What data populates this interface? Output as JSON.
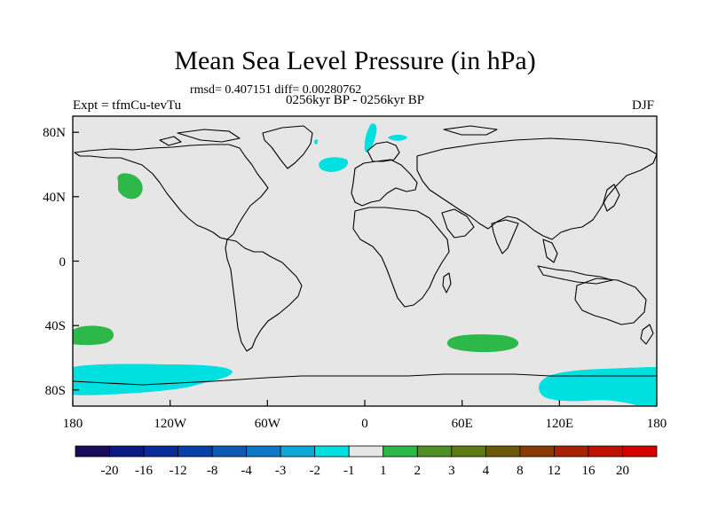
{
  "title": "Mean Sea Level Pressure (in hPa)",
  "stats": "rmsd= 0.407151  diff= 0.00280762",
  "period": "0256kyr BP - 0256kyr BP",
  "experiment": "Expt = tfmCu-tevTu",
  "season": "DJF",
  "map": {
    "lon_range": [
      -180,
      180
    ],
    "lat_range": [
      -90,
      90
    ],
    "x_ticks": [
      "180",
      "120W",
      "60W",
      "0",
      "60E",
      "120E",
      "180"
    ],
    "y_ticks": [
      "80N",
      "40N",
      "0",
      "40S",
      "80S"
    ],
    "background_color": "#e6e6e6",
    "anomalies": [
      {
        "region": "North Pacific",
        "lon": -147,
        "lat": 47,
        "class": "1 to 2",
        "color": "#2db84a"
      },
      {
        "region": "South Pacific",
        "lon": -163,
        "lat": -45,
        "class": "1 to 2",
        "color": "#2db84a"
      },
      {
        "region": "South Indian Ocean",
        "lon": 68,
        "lat": -50,
        "class": "1 to 2",
        "color": "#2db84a"
      },
      {
        "region": "North Atlantic / Iceland",
        "lon": -18,
        "lat": 62,
        "class": "-2 to -1",
        "color": "#00e0e0"
      },
      {
        "region": "Svalbard",
        "lon": 5,
        "lat": 80,
        "class": "-2 to -1",
        "color": "#00e0e0"
      },
      {
        "region": "Antarctic Ross / Amundsen Sea",
        "lon": -150,
        "lat": -78,
        "class": "-2 to -1",
        "color": "#00e0e0"
      },
      {
        "region": "East Antarctic coast",
        "lon": 150,
        "lat": -78,
        "class": "-2 to -1",
        "color": "#00e0e0"
      }
    ]
  },
  "colorbar": {
    "labels": [
      "-20",
      "-16",
      "-12",
      "-8",
      "-4",
      "-3",
      "-2",
      "-1",
      "1",
      "2",
      "3",
      "4",
      "8",
      "12",
      "16",
      "20"
    ],
    "colors": [
      "#1a0a5a",
      "#0a1a82",
      "#0a2b9a",
      "#0640a8",
      "#0b5ab4",
      "#0a78c4",
      "#0aa8d8",
      "#00e0e0",
      "#e6e6e6",
      "#2db84a",
      "#4f8f22",
      "#5e7a12",
      "#6a5a08",
      "#8a3a05",
      "#a82104",
      "#c01204",
      "#d40000"
    ]
  }
}
